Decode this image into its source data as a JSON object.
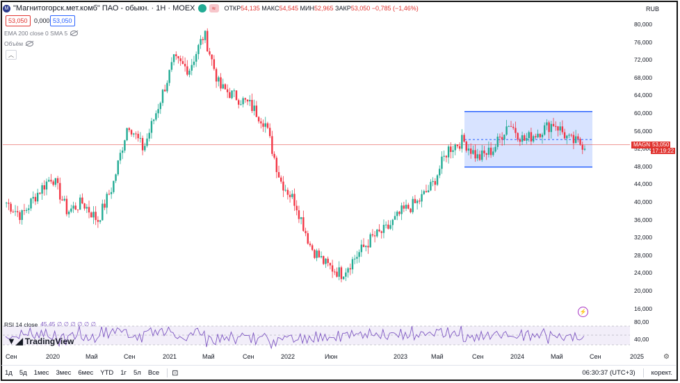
{
  "header": {
    "title": "\"Магнитогорск.мет.комб\" ПАО - обыкн. · 1Н · MOEX",
    "ohlc": [
      {
        "k": "ОТКР",
        "v": "54,135"
      },
      {
        "k": "МАКС",
        "v": "54,545"
      },
      {
        "k": "МИН",
        "v": "52,965"
      },
      {
        "k": "ЗАКР",
        "v": "53,050"
      },
      {
        "k": "",
        "v": "−0,785 (−1,46%)"
      }
    ],
    "currency": "RUB",
    "logo_letter": "M",
    "badge_symbol": "≈"
  },
  "prices": {
    "sell": "53,050",
    "spread": "0,000",
    "buy": "53,050"
  },
  "indicators": {
    "ema": "EMA 200 close 0 SMA 5",
    "volume": "Объём",
    "rsi_label": "RSI 14 close",
    "rsi_values": "45,45  ∅ ∅ ∅ ∅ ∅ ∅"
  },
  "y_axis": [
    "80,000",
    "76,000",
    "72,000",
    "68,000",
    "64,000",
    "60,000",
    "56,000",
    "52,000",
    "48,000",
    "44,000",
    "40,000",
    "36,000",
    "32,000",
    "28,000",
    "24,000",
    "20,000",
    "16,000"
  ],
  "rsi_axis": [
    "80,00",
    "40,00"
  ],
  "current": {
    "symbol": "MAGN",
    "price": "53,050",
    "countdown": "17:19:22"
  },
  "x_axis": [
    "Сен",
    "2020",
    "Май",
    "Сен",
    "2021",
    "Май",
    "Сен",
    "2022",
    "Июн",
    "2023",
    "Май",
    "Сен",
    "2024",
    "Май",
    "Сен",
    "2025"
  ],
  "toolbar": {
    "timeframes": [
      "1д",
      "5д",
      "1мес",
      "3мес",
      "6мес",
      "YTD",
      "1г",
      "5л",
      "Все"
    ],
    "time": "06:30:37 (UTC+3)",
    "adjust": "корект."
  },
  "branding": "TradingView",
  "chart_data": {
    "type": "candlestick",
    "ylim": [
      16,
      80
    ],
    "annotations": [
      {
        "type": "rectangle",
        "y_top": 60.5,
        "y_bottom": 48.0,
        "from": "2023-08",
        "to": "2024-09"
      }
    ],
    "series": [
      {
        "name": "MAGN",
        "values_approx_close": [
          40,
          37,
          42,
          46,
          38,
          40,
          36,
          44,
          58,
          52,
          62,
          72,
          70,
          78,
          66,
          64,
          62,
          58,
          45,
          40,
          30,
          26,
          24,
          28,
          32,
          34,
          38,
          40,
          44,
          52,
          54,
          50,
          52,
          58,
          54,
          56,
          58,
          54,
          53
        ]
      }
    ]
  }
}
